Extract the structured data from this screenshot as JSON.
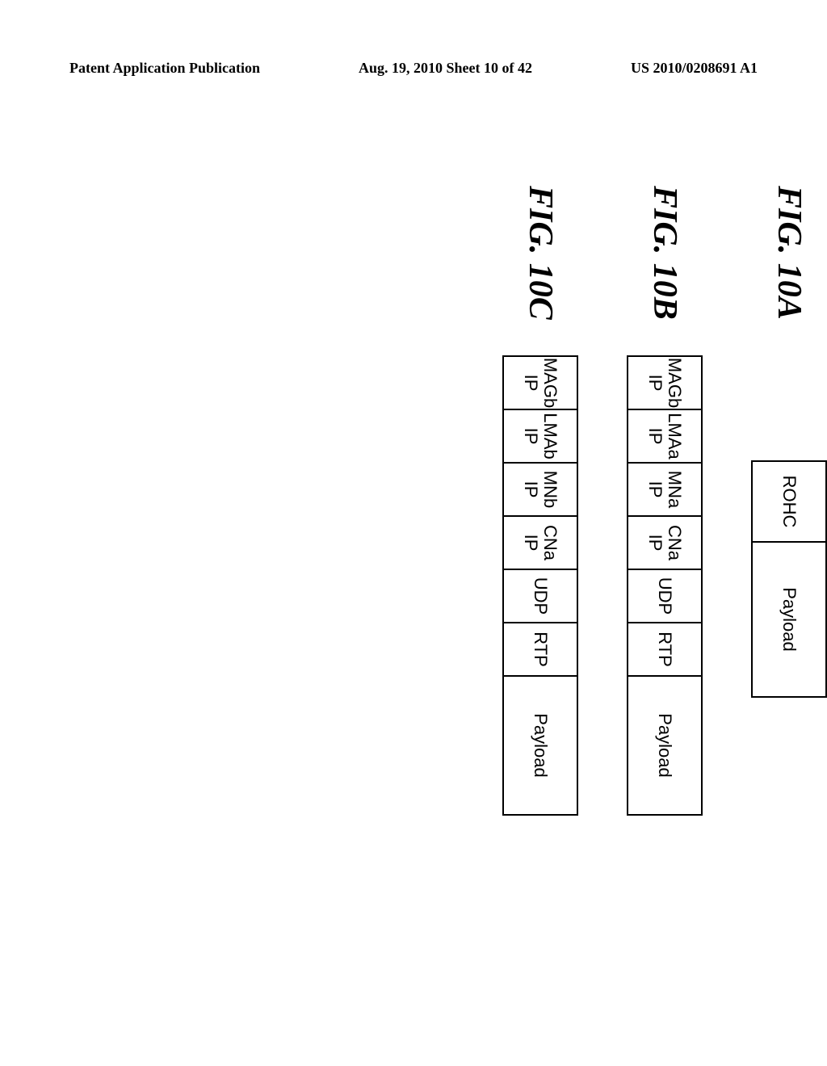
{
  "header": {
    "left": "Patent Application Publication",
    "center": "Aug. 19, 2010  Sheet 10 of 42",
    "right": "US 2010/0208691 A1"
  },
  "figures": {
    "a": {
      "label": "FIG. 10A",
      "cells": {
        "rohc": "ROHC",
        "payload": "Payload"
      }
    },
    "b": {
      "label": "FIG. 10B",
      "cells": {
        "magb": "MAGb\nIP",
        "lmaa": "LMAa\nIP",
        "mna": "MNa\nIP",
        "cna": "CNa\nIP",
        "udp": "UDP",
        "rtp": "RTP",
        "payload": "Payload"
      }
    },
    "c": {
      "label": "FIG. 10C",
      "cells": {
        "magb": "MAGb\nIP",
        "lmab": "LMAb\nIP",
        "mnb": "MNb\nIP",
        "cna": "CNa\nIP",
        "udp": "UDP",
        "rtp": "RTP",
        "payload": "Payload"
      }
    }
  }
}
